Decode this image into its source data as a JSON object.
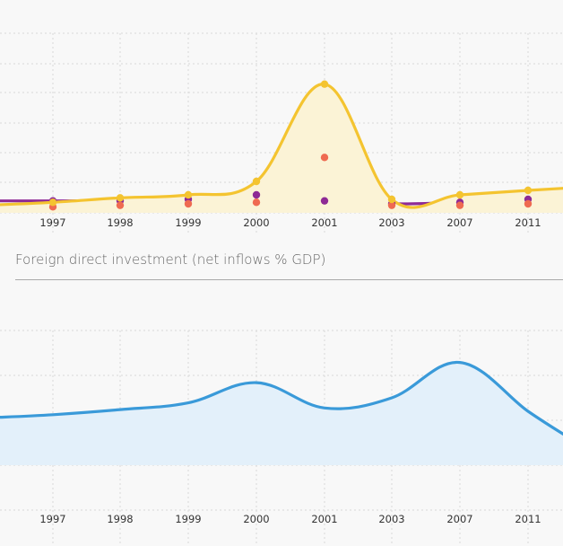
{
  "section_title": "Foreign direct investment (net inflows % GDP)",
  "chart_data": [
    {
      "type": "area",
      "title": "",
      "categories": [
        "1997",
        "1998",
        "1999",
        "2000",
        "2001",
        "2003",
        "2007",
        "2011"
      ],
      "ylim": [
        0,
        12
      ],
      "grid": true,
      "legend": "none",
      "series": [
        {
          "color": "#f4c430",
          "fill": "#fbf3d6",
          "values": [
            0.7,
            1.0,
            1.2,
            2.1,
            8.6,
            0.9,
            1.2,
            1.5
          ]
        },
        {
          "color": "#ef6a51",
          "fill": "none",
          "values": [
            0.4,
            0.5,
            0.6,
            0.7,
            3.7,
            0.5,
            0.5,
            0.6
          ]
        },
        {
          "color": "#8e2a95",
          "fill": "none",
          "values": [
            0.8,
            0.8,
            0.9,
            1.2,
            0.8,
            0.6,
            0.7,
            0.9
          ]
        }
      ]
    },
    {
      "type": "area",
      "title": "",
      "categories": [
        "1997",
        "1998",
        "1999",
        "2000",
        "2001",
        "2003",
        "2007",
        "2011"
      ],
      "ylim": [
        0,
        4
      ],
      "grid": true,
      "legend": "none",
      "series": [
        {
          "color": "#3a9ad9",
          "fill": "#e3f0fa",
          "values": [
            1.5,
            1.65,
            1.85,
            2.45,
            1.7,
            2.0,
            3.05,
            1.6
          ]
        }
      ]
    }
  ]
}
